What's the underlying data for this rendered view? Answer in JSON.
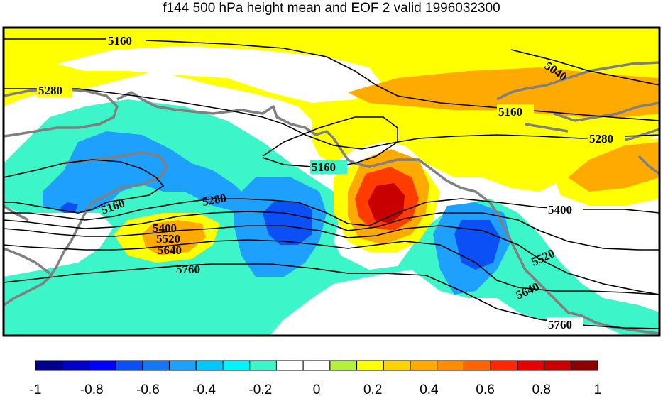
{
  "title": "f144 500 hPa height mean and EOF 2 valid 1996032300",
  "contour_labels": [
    "5160",
    "5280",
    "5040",
    "5160",
    "5280",
    "5160",
    "5160",
    "5280",
    "5400",
    "5520",
    "5640",
    "5400",
    "5760",
    "5520",
    "5640",
    "5760"
  ],
  "colorbar": {
    "ticks": [
      "-1",
      "-0.8",
      "-0.6",
      "-0.4",
      "-0.2",
      "0",
      "0.2",
      "0.4",
      "0.6",
      "0.8",
      "1"
    ],
    "colors": [
      "#00008c",
      "#0000c8",
      "#0000ff",
      "#0a50f5",
      "#1478f0",
      "#1ea0ff",
      "#00c8ff",
      "#00f5ff",
      "#3cf5c8",
      "#ffffff",
      "#ffffff",
      "#b4f03c",
      "#ffff00",
      "#ffd200",
      "#ffaa00",
      "#ff8c00",
      "#ff6400",
      "#ff2800",
      "#e60000",
      "#c80000",
      "#8c0000"
    ]
  },
  "field_colors": {
    "pos_low": "#ffff00",
    "pos_mid": "#ffaa00",
    "pos_high": "#ff3c00",
    "pos_max": "#c80000",
    "neg_low": "#3cf5c8",
    "neg_mid": "#1ea0ff",
    "neg_high": "#0a50f5",
    "neg_max": "#0000c8",
    "coast": "#808080"
  }
}
